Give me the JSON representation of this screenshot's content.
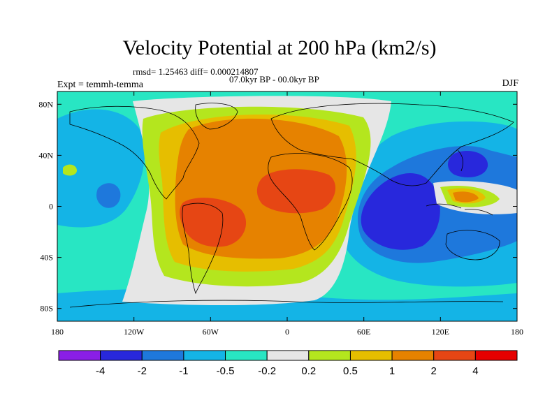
{
  "title": "Velocity Potential at 200 hPa (km2/s)",
  "stats_text": "rmsd= 1.25463 diff= 0.000214807",
  "period_text": "07.0kyr BP - 00.0kyr BP",
  "expt_text": "Expt = temmh-temma",
  "season": "DJF",
  "lat_labels": [
    "80N",
    "40N",
    "0",
    "40S",
    "80S"
  ],
  "lon_labels": [
    "180",
    "120W",
    "60W",
    "0",
    "60E",
    "120E",
    "180"
  ],
  "colorbar": {
    "colors": [
      "#8a1ee6",
      "#2828dc",
      "#1e78dc",
      "#14b4e6",
      "#28e6c3",
      "#e6e6e6",
      "#b4e61e",
      "#e6be00",
      "#e68200",
      "#e64614",
      "#e60000"
    ],
    "labels": [
      "-4",
      "-2",
      "-1",
      "-0.5",
      "-0.2",
      "0.2",
      "0.5",
      "1",
      "2",
      "4"
    ]
  }
}
